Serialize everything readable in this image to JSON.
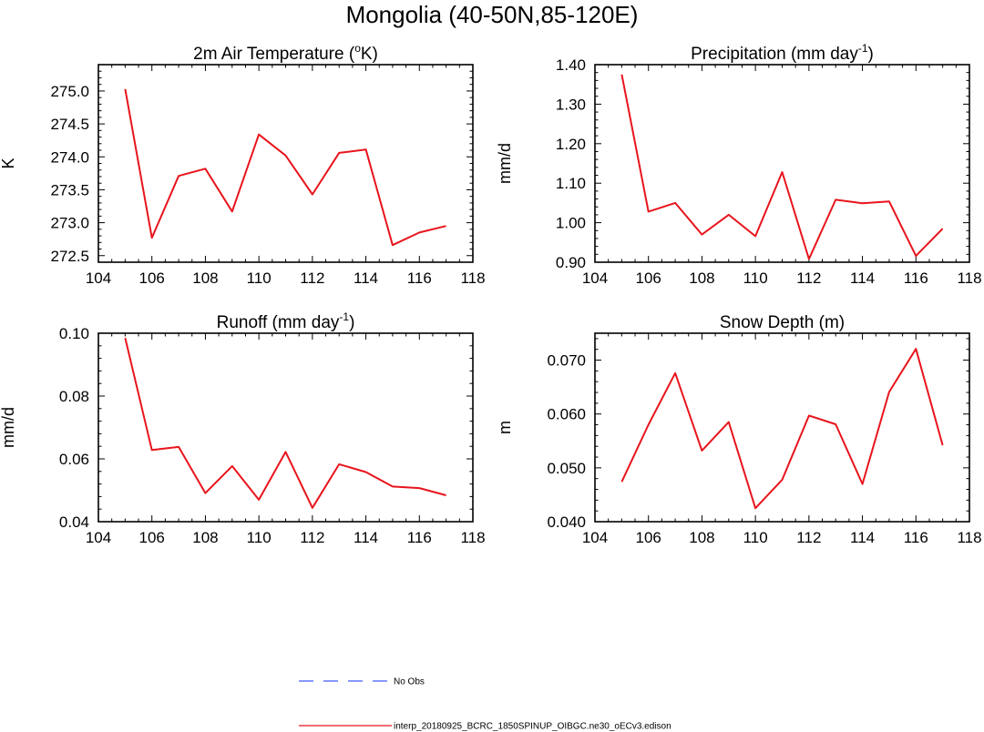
{
  "figure": {
    "title": "Mongolia (40-50N,85-120E)"
  },
  "chart_data": [
    {
      "type": "line",
      "title_main": "2m Air Temperature (",
      "title_sup": "o",
      "title_tail": "K)",
      "ylabel": "K",
      "xlim": [
        104,
        118
      ],
      "ylim": [
        272.4,
        275.4
      ],
      "xticks": [
        104,
        106,
        108,
        110,
        112,
        114,
        116,
        118
      ],
      "xtick_labels": [
        "104",
        "106",
        "108",
        "110",
        "112",
        "114",
        "116",
        "118"
      ],
      "yticks": [
        272.5,
        273.0,
        273.5,
        274.0,
        274.5,
        275.0
      ],
      "ytick_labels": [
        "272.5",
        "273.0",
        "273.5",
        "274.0",
        "274.5",
        "275.0"
      ],
      "x": [
        105,
        106,
        107,
        108,
        109,
        110,
        111,
        112,
        113,
        114,
        115,
        116,
        117
      ],
      "series": [
        {
          "name": "interp_20180925_BCRC_1850SPINUP_OIBGC.ne30_oECv3.edison",
          "color": "#e8141c",
          "values": [
            275.03,
            272.77,
            273.71,
            273.82,
            273.17,
            274.34,
            274.02,
            273.43,
            274.06,
            274.11,
            272.66,
            272.85,
            272.95
          ]
        }
      ]
    },
    {
      "type": "line",
      "title_main": "Precipitation (mm day",
      "title_sup": "-1",
      "title_tail": ")",
      "ylabel": "mm/d",
      "xlim": [
        104,
        118
      ],
      "ylim": [
        0.9,
        1.4
      ],
      "xticks": [
        104,
        106,
        108,
        110,
        112,
        114,
        116,
        118
      ],
      "xtick_labels": [
        "104",
        "106",
        "108",
        "110",
        "112",
        "114",
        "116",
        "118"
      ],
      "yticks": [
        0.9,
        1.0,
        1.1,
        1.2,
        1.3,
        1.4
      ],
      "ytick_labels": [
        "0.90",
        "1.00",
        "1.10",
        "1.20",
        "1.30",
        "1.40"
      ],
      "x": [
        105,
        106,
        107,
        108,
        109,
        110,
        111,
        112,
        113,
        114,
        115,
        116,
        117
      ],
      "series": [
        {
          "name": "interp_20180925_BCRC_1850SPINUP_OIBGC.ne30_oECv3.edison",
          "color": "#e8141c",
          "values": [
            1.375,
            1.028,
            1.05,
            0.97,
            1.02,
            0.966,
            1.128,
            0.908,
            1.058,
            1.049,
            1.054,
            0.916,
            0.985
          ]
        }
      ]
    },
    {
      "type": "line",
      "title_main": "Runoff (mm day",
      "title_sup": "-1",
      "title_tail": ")",
      "ylabel": "mm/d",
      "xlim": [
        104,
        118
      ],
      "ylim": [
        0.04,
        0.1
      ],
      "xticks": [
        104,
        106,
        108,
        110,
        112,
        114,
        116,
        118
      ],
      "xtick_labels": [
        "104",
        "106",
        "108",
        "110",
        "112",
        "114",
        "116",
        "118"
      ],
      "yticks": [
        0.04,
        0.06,
        0.08,
        0.1
      ],
      "ytick_labels": [
        "0.04",
        "0.06",
        "0.08",
        "0.10"
      ],
      "x": [
        105,
        106,
        107,
        108,
        109,
        110,
        111,
        112,
        113,
        114,
        115,
        116,
        117
      ],
      "series": [
        {
          "name": "interp_20180925_BCRC_1850SPINUP_OIBGC.ne30_oECv3.edison",
          "color": "#e8141c",
          "values": [
            0.0985,
            0.0628,
            0.0638,
            0.0491,
            0.0577,
            0.047,
            0.0622,
            0.0444,
            0.0583,
            0.0558,
            0.0512,
            0.0507,
            0.0484
          ]
        }
      ]
    },
    {
      "type": "line",
      "title_main": "Snow Depth (m)",
      "title_sup": "",
      "title_tail": "",
      "ylabel": "m",
      "xlim": [
        104,
        118
      ],
      "ylim": [
        0.04,
        0.075
      ],
      "xticks": [
        104,
        106,
        108,
        110,
        112,
        114,
        116,
        118
      ],
      "xtick_labels": [
        "104",
        "106",
        "108",
        "110",
        "112",
        "114",
        "116",
        "118"
      ],
      "yticks": [
        0.04,
        0.05,
        0.06,
        0.07
      ],
      "ytick_labels": [
        "0.040",
        "0.050",
        "0.060",
        "0.070"
      ],
      "x": [
        105,
        106,
        107,
        108,
        109,
        110,
        111,
        112,
        113,
        114,
        115,
        116,
        117
      ],
      "series": [
        {
          "name": "interp_20180925_BCRC_1850SPINUP_OIBGC.ne30_oECv3.edison",
          "color": "#e8141c",
          "values": [
            0.0474,
            0.058,
            0.0676,
            0.0532,
            0.0585,
            0.0425,
            0.0478,
            0.0597,
            0.0581,
            0.047,
            0.0641,
            0.0721,
            0.0542
          ]
        }
      ]
    }
  ],
  "legend": {
    "items": [
      {
        "label": "No Obs",
        "color": "#3d5cff",
        "style": "dashed"
      },
      {
        "label": "interp_20180925_BCRC_1850SPINUP_OIBGC.ne30_oECv3.edison",
        "color": "#e8141c",
        "style": "solid"
      }
    ]
  }
}
